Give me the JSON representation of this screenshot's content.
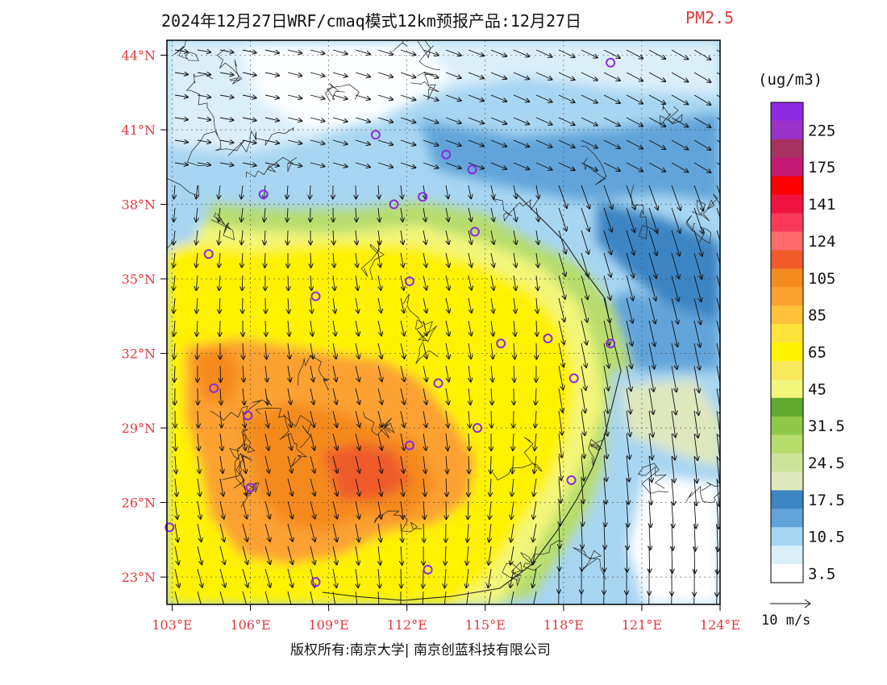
{
  "title": {
    "main": "2024年12月27日WRF/cmaq模式12km预报产品:12月27日",
    "variable": "PM2.5"
  },
  "units": "(ug/m3)",
  "colorbar": {
    "bins": [
      {
        "label": "",
        "color": "#8c2be2"
      },
      {
        "label": "225",
        "color": "#9a32c9"
      },
      {
        "label": "",
        "color": "#a8325f"
      },
      {
        "label": "175",
        "color": "#c21a73"
      },
      {
        "label": "",
        "color": "#ff0000"
      },
      {
        "label": "141",
        "color": "#f0123f"
      },
      {
        "label": "",
        "color": "#f83a58"
      },
      {
        "label": "124",
        "color": "#ff6b6b"
      },
      {
        "label": "",
        "color": "#ef5b2b"
      },
      {
        "label": "105",
        "color": "#f58a1f"
      },
      {
        "label": "",
        "color": "#fca130"
      },
      {
        "label": "85",
        "color": "#ffc23a"
      },
      {
        "label": "",
        "color": "#fde23a"
      },
      {
        "label": "65",
        "color": "#fff200"
      },
      {
        "label": "",
        "color": "#f7e85c"
      },
      {
        "label": "45",
        "color": "#f2f67a"
      },
      {
        "label": "",
        "color": "#5fa92e"
      },
      {
        "label": "31.5",
        "color": "#8fc94a"
      },
      {
        "label": "",
        "color": "#b7dd6d"
      },
      {
        "label": "24.5",
        "color": "#cde39a"
      },
      {
        "label": "",
        "color": "#dfe8bd"
      },
      {
        "label": "17.5",
        "color": "#3c84c2"
      },
      {
        "label": "",
        "color": "#62a4d9"
      },
      {
        "label": "10.5",
        "color": "#a7d6f2"
      },
      {
        "label": "",
        "color": "#dbeff9"
      },
      {
        "label": "3.5",
        "color": "#ffffff"
      }
    ]
  },
  "map": {
    "lat_labels": [
      "44°N",
      "41°N",
      "38°N",
      "35°N",
      "32°N",
      "29°N",
      "26°N",
      "23°N"
    ],
    "lon_labels": [
      "103°E",
      "106°E",
      "109°E",
      "112°E",
      "115°E",
      "118°E",
      "121°E",
      "124°E"
    ],
    "stations": [
      {
        "lon": 119.8,
        "lat": 43.7
      },
      {
        "lon": 110.8,
        "lat": 40.8
      },
      {
        "lon": 113.5,
        "lat": 40.0
      },
      {
        "lon": 114.5,
        "lat": 39.4
      },
      {
        "lon": 106.5,
        "lat": 38.4
      },
      {
        "lon": 111.5,
        "lat": 38.0
      },
      {
        "lon": 112.6,
        "lat": 38.3
      },
      {
        "lon": 114.6,
        "lat": 36.9
      },
      {
        "lon": 104.4,
        "lat": 36.0
      },
      {
        "lon": 112.1,
        "lat": 34.9
      },
      {
        "lon": 108.5,
        "lat": 34.3
      },
      {
        "lon": 115.6,
        "lat": 32.4
      },
      {
        "lon": 117.4,
        "lat": 32.6
      },
      {
        "lon": 119.8,
        "lat": 32.4
      },
      {
        "lon": 118.4,
        "lat": 31.0
      },
      {
        "lon": 104.6,
        "lat": 30.6
      },
      {
        "lon": 113.2,
        "lat": 30.8
      },
      {
        "lon": 105.9,
        "lat": 29.5
      },
      {
        "lon": 114.7,
        "lat": 29.0
      },
      {
        "lon": 112.1,
        "lat": 28.3
      },
      {
        "lon": 106.0,
        "lat": 26.6
      },
      {
        "lon": 118.3,
        "lat": 26.9
      },
      {
        "lon": 102.9,
        "lat": 25.0
      },
      {
        "lon": 108.5,
        "lat": 22.8
      },
      {
        "lon": 112.8,
        "lat": 23.3
      }
    ],
    "station_color": "#8a2be2"
  },
  "wind_scale_label": "10 m/s",
  "copyright": "版权所有:南京大学| 南京创蓝科技有限公司"
}
